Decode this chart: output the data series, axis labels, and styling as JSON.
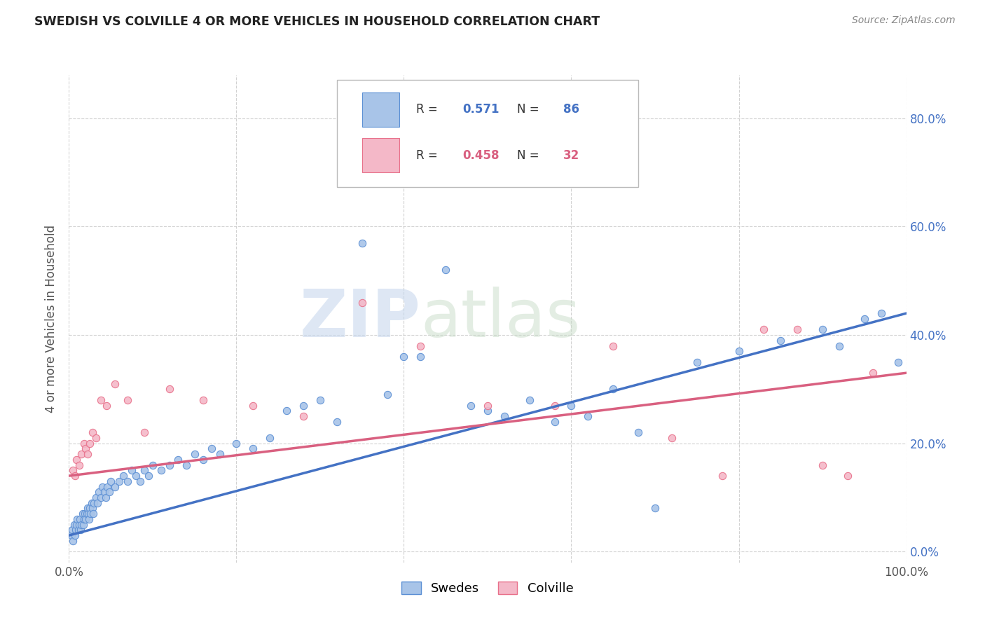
{
  "title": "SWEDISH VS COLVILLE 4 OR MORE VEHICLES IN HOUSEHOLD CORRELATION CHART",
  "source": "Source: ZipAtlas.com",
  "ylabel": "4 or more Vehicles in Household",
  "xlim": [
    0.0,
    1.0
  ],
  "ylim": [
    -0.02,
    0.88
  ],
  "swedes_R": 0.571,
  "swedes_N": 86,
  "colville_R": 0.458,
  "colville_N": 32,
  "swedes_color": "#a8c4e8",
  "colville_color": "#f4b8c8",
  "swedes_edge_color": "#5b8fd4",
  "colville_edge_color": "#e8708a",
  "swedes_line_color": "#4472c4",
  "colville_line_color": "#d96080",
  "background_color": "#ffffff",
  "grid_color": "#cccccc",
  "watermark_zip": "ZIP",
  "watermark_atlas": "atlas",
  "legend_labels": [
    "Swedes",
    "Colville"
  ],
  "swedes_x": [
    0.003,
    0.004,
    0.005,
    0.006,
    0.007,
    0.008,
    0.009,
    0.01,
    0.011,
    0.012,
    0.013,
    0.014,
    0.015,
    0.016,
    0.017,
    0.018,
    0.019,
    0.02,
    0.021,
    0.022,
    0.023,
    0.024,
    0.025,
    0.026,
    0.027,
    0.028,
    0.029,
    0.03,
    0.032,
    0.034,
    0.036,
    0.038,
    0.04,
    0.042,
    0.044,
    0.046,
    0.048,
    0.05,
    0.055,
    0.06,
    0.065,
    0.07,
    0.075,
    0.08,
    0.085,
    0.09,
    0.095,
    0.1,
    0.11,
    0.12,
    0.13,
    0.14,
    0.15,
    0.16,
    0.17,
    0.18,
    0.2,
    0.22,
    0.24,
    0.26,
    0.28,
    0.3,
    0.32,
    0.35,
    0.38,
    0.4,
    0.42,
    0.45,
    0.48,
    0.5,
    0.52,
    0.55,
    0.58,
    0.6,
    0.62,
    0.65,
    0.68,
    0.7,
    0.75,
    0.8,
    0.85,
    0.9,
    0.92,
    0.95,
    0.97,
    0.99
  ],
  "swedes_y": [
    0.03,
    0.04,
    0.02,
    0.05,
    0.03,
    0.04,
    0.05,
    0.06,
    0.04,
    0.05,
    0.06,
    0.04,
    0.05,
    0.07,
    0.05,
    0.06,
    0.07,
    0.06,
    0.07,
    0.08,
    0.07,
    0.06,
    0.08,
    0.07,
    0.09,
    0.08,
    0.07,
    0.09,
    0.1,
    0.09,
    0.11,
    0.1,
    0.12,
    0.11,
    0.1,
    0.12,
    0.11,
    0.13,
    0.12,
    0.13,
    0.14,
    0.13,
    0.15,
    0.14,
    0.13,
    0.15,
    0.14,
    0.16,
    0.15,
    0.16,
    0.17,
    0.16,
    0.18,
    0.17,
    0.19,
    0.18,
    0.2,
    0.19,
    0.21,
    0.26,
    0.27,
    0.28,
    0.24,
    0.57,
    0.29,
    0.36,
    0.36,
    0.52,
    0.27,
    0.26,
    0.25,
    0.28,
    0.24,
    0.27,
    0.25,
    0.3,
    0.22,
    0.08,
    0.35,
    0.37,
    0.39,
    0.41,
    0.38,
    0.43,
    0.44,
    0.35
  ],
  "colville_x": [
    0.005,
    0.007,
    0.009,
    0.012,
    0.015,
    0.018,
    0.02,
    0.022,
    0.025,
    0.028,
    0.032,
    0.038,
    0.045,
    0.055,
    0.07,
    0.09,
    0.12,
    0.16,
    0.22,
    0.28,
    0.35,
    0.42,
    0.5,
    0.58,
    0.65,
    0.72,
    0.78,
    0.83,
    0.87,
    0.9,
    0.93,
    0.96
  ],
  "colville_y": [
    0.15,
    0.14,
    0.17,
    0.16,
    0.18,
    0.2,
    0.19,
    0.18,
    0.2,
    0.22,
    0.21,
    0.28,
    0.27,
    0.31,
    0.28,
    0.22,
    0.3,
    0.28,
    0.27,
    0.25,
    0.46,
    0.38,
    0.27,
    0.27,
    0.38,
    0.21,
    0.14,
    0.41,
    0.41,
    0.16,
    0.14,
    0.33
  ]
}
